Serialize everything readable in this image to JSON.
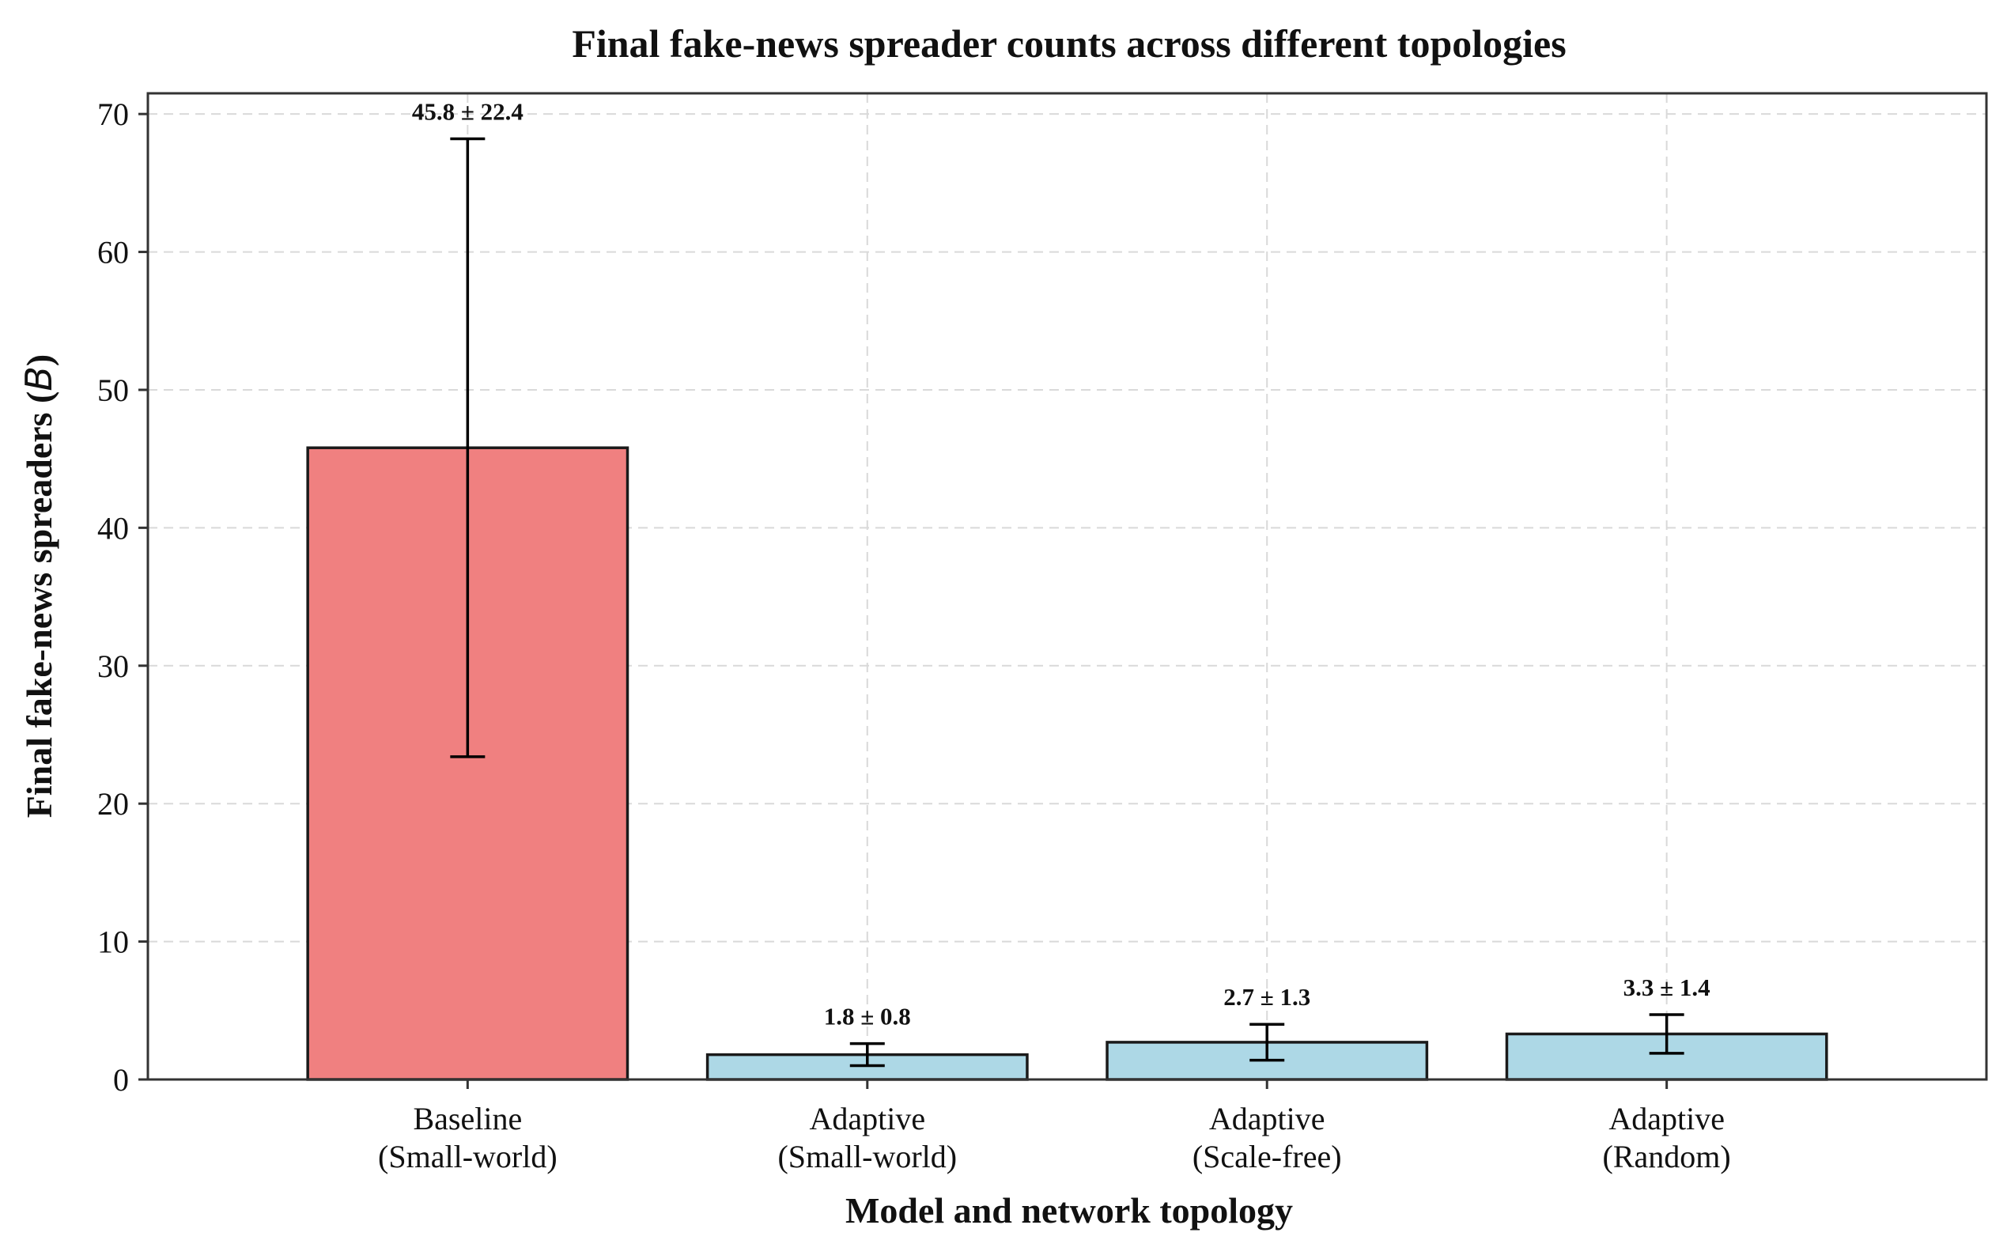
{
  "chart_data": {
    "type": "bar",
    "title": "Final fake-news spreader counts across different topologies",
    "xlabel": "Model and network topology",
    "ylabel": "Final fake-news spreaders (",
    "ylabel_symbol": "B",
    "ylabel_suffix": ")",
    "ylim": [
      0,
      71.5
    ],
    "yticks": [
      0,
      10,
      20,
      30,
      40,
      50,
      60,
      70
    ],
    "grid": true,
    "categories": [
      [
        "Baseline",
        "(Small-world)"
      ],
      [
        "Adaptive",
        "(Small-world)"
      ],
      [
        "Adaptive",
        "(Scale-free)"
      ],
      [
        "Adaptive",
        "(Random)"
      ]
    ],
    "values": [
      45.8,
      1.8,
      2.7,
      3.3
    ],
    "errors": [
      22.4,
      0.8,
      1.3,
      1.4
    ],
    "data_labels": [
      "45.8 ± 22.4",
      "1.8 ± 0.8",
      "2.7 ± 1.3",
      "3.3 ± 1.4"
    ],
    "colors": [
      "#f08080",
      "#add8e6",
      "#add8e6",
      "#add8e6"
    ],
    "edge_color": "#1a1a1a"
  }
}
